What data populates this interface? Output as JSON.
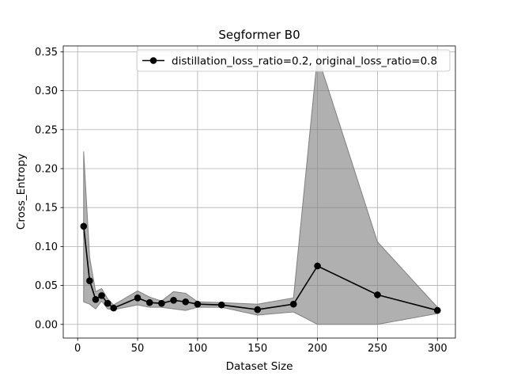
{
  "chart_data": {
    "type": "line",
    "title": "Segformer B0",
    "xlabel": "Dataset Size",
    "ylabel": "Cross_Entropy",
    "xlim": [
      -12,
      315
    ],
    "ylim": [
      -0.0175,
      0.3575
    ],
    "xticks": [
      0,
      50,
      100,
      150,
      200,
      250,
      300
    ],
    "yticks": [
      0.0,
      0.05,
      0.1,
      0.15,
      0.2,
      0.25,
      0.3,
      0.35
    ],
    "xtick_labels": [
      "0",
      "50",
      "100",
      "150",
      "200",
      "250",
      "300"
    ],
    "ytick_labels": [
      "0.00",
      "0.05",
      "0.10",
      "0.15",
      "0.20",
      "0.25",
      "0.30",
      "0.35"
    ],
    "grid": true,
    "legend_position": "top-right",
    "series": [
      {
        "name": "distillation_loss_ratio=0.2, original_loss_ratio=0.8",
        "color": "#000000",
        "band_color": "#808080",
        "x": [
          5,
          10,
          15,
          20,
          25,
          30,
          50,
          60,
          70,
          80,
          90,
          100,
          120,
          150,
          180,
          200,
          250,
          300
        ],
        "y": [
          0.126,
          0.056,
          0.032,
          0.037,
          0.027,
          0.021,
          0.034,
          0.028,
          0.027,
          0.031,
          0.029,
          0.026,
          0.025,
          0.019,
          0.026,
          0.075,
          0.038,
          0.018
        ],
        "lower": [
          0.029,
          0.026,
          0.02,
          0.03,
          0.02,
          0.019,
          0.025,
          0.022,
          0.022,
          0.02,
          0.018,
          0.022,
          0.022,
          0.012,
          0.016,
          0.0,
          0.0,
          0.014
        ],
        "upper": [
          0.222,
          0.086,
          0.042,
          0.046,
          0.033,
          0.025,
          0.043,
          0.035,
          0.03,
          0.042,
          0.04,
          0.029,
          0.028,
          0.026,
          0.034,
          0.345,
          0.106,
          0.022
        ]
      }
    ]
  }
}
